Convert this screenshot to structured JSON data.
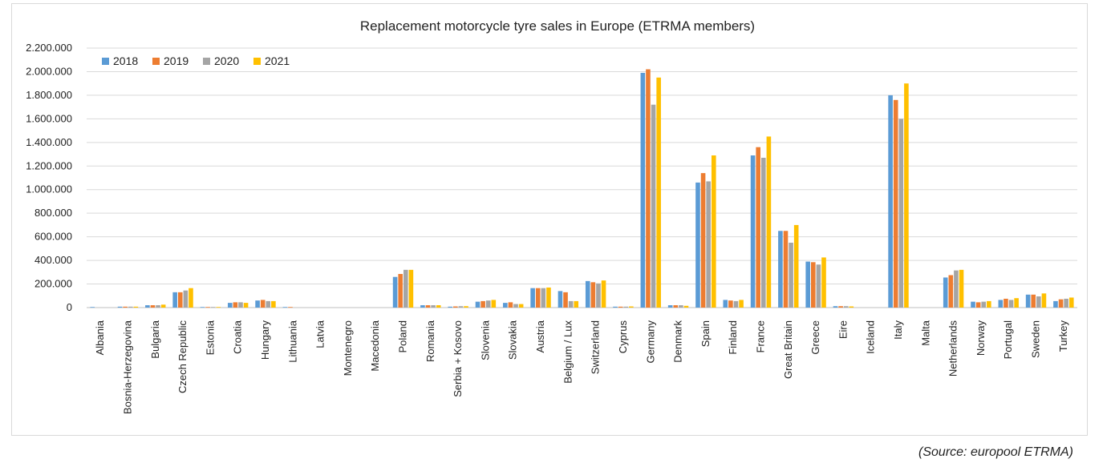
{
  "chart_data": {
    "type": "bar",
    "title": "Replacement motorcycle tyre sales in Europe (ETRMA members)",
    "xlabel": "",
    "ylabel": "",
    "ylim": [
      0,
      2200000
    ],
    "yticks": [
      0,
      200000,
      400000,
      600000,
      800000,
      1000000,
      1200000,
      1400000,
      1600000,
      1800000,
      2000000,
      2200000
    ],
    "ytick_labels": [
      "0",
      "200.000",
      "400.000",
      "600.000",
      "800.000",
      "1.000.000",
      "1.200.000",
      "1.400.000",
      "1.600.000",
      "1.800.000",
      "2.000.000",
      "2.200.000"
    ],
    "grid": true,
    "legend_position": "top-left",
    "categories": [
      "Albania",
      "Bosnia-Herzegovina",
      "Bulgaria",
      "Czech Republic",
      "Estonia",
      "Croatia",
      "Hungary",
      "Lithuania",
      "Latvia",
      "Montenegro",
      "Macedonia",
      "Poland",
      "Romania",
      "Serbia + Kosovo",
      "Slovenia",
      "Slovakia",
      "Austria",
      "Belgium / Lux",
      "Switzerland",
      "Cyprus",
      "Germany",
      "Denmark",
      "Spain",
      "Finland",
      "France",
      "Great Britain",
      "Greece",
      "Eire",
      "Iceland",
      "Italy",
      "Malta",
      "Netherlands",
      "Norway",
      "Portugal",
      "Sweden",
      "Turkey"
    ],
    "series": [
      {
        "name": "2018",
        "color": "#5B9BD5",
        "values": [
          5000,
          8000,
          20000,
          130000,
          5000,
          40000,
          60000,
          5000,
          0,
          0,
          0,
          260000,
          20000,
          8000,
          50000,
          40000,
          165000,
          140000,
          225000,
          8000,
          1990000,
          20000,
          1060000,
          65000,
          1290000,
          650000,
          390000,
          12000,
          0,
          1800000,
          0,
          255000,
          50000,
          65000,
          110000,
          55000
        ]
      },
      {
        "name": "2019",
        "color": "#ED7D31",
        "values": [
          0,
          8000,
          20000,
          130000,
          5000,
          45000,
          65000,
          5000,
          0,
          0,
          0,
          285000,
          20000,
          10000,
          55000,
          45000,
          165000,
          130000,
          215000,
          8000,
          2020000,
          20000,
          1140000,
          60000,
          1360000,
          650000,
          385000,
          12000,
          0,
          1760000,
          0,
          275000,
          45000,
          75000,
          110000,
          70000
        ]
      },
      {
        "name": "2020",
        "color": "#A5A5A5",
        "values": [
          0,
          8000,
          20000,
          145000,
          5000,
          45000,
          55000,
          0,
          0,
          0,
          0,
          320000,
          20000,
          12000,
          60000,
          30000,
          165000,
          55000,
          205000,
          8000,
          1720000,
          20000,
          1070000,
          55000,
          1270000,
          550000,
          365000,
          12000,
          0,
          1600000,
          0,
          315000,
          50000,
          65000,
          95000,
          75000
        ]
      },
      {
        "name": "2021",
        "color": "#FFC000",
        "values": [
          0,
          8000,
          25000,
          165000,
          5000,
          40000,
          55000,
          0,
          0,
          0,
          0,
          320000,
          20000,
          12000,
          65000,
          30000,
          170000,
          55000,
          230000,
          10000,
          1950000,
          15000,
          1290000,
          65000,
          1450000,
          700000,
          425000,
          10000,
          0,
          1900000,
          0,
          320000,
          55000,
          80000,
          120000,
          85000
        ]
      }
    ]
  },
  "source_note": "(Source: europool ETRMA)"
}
